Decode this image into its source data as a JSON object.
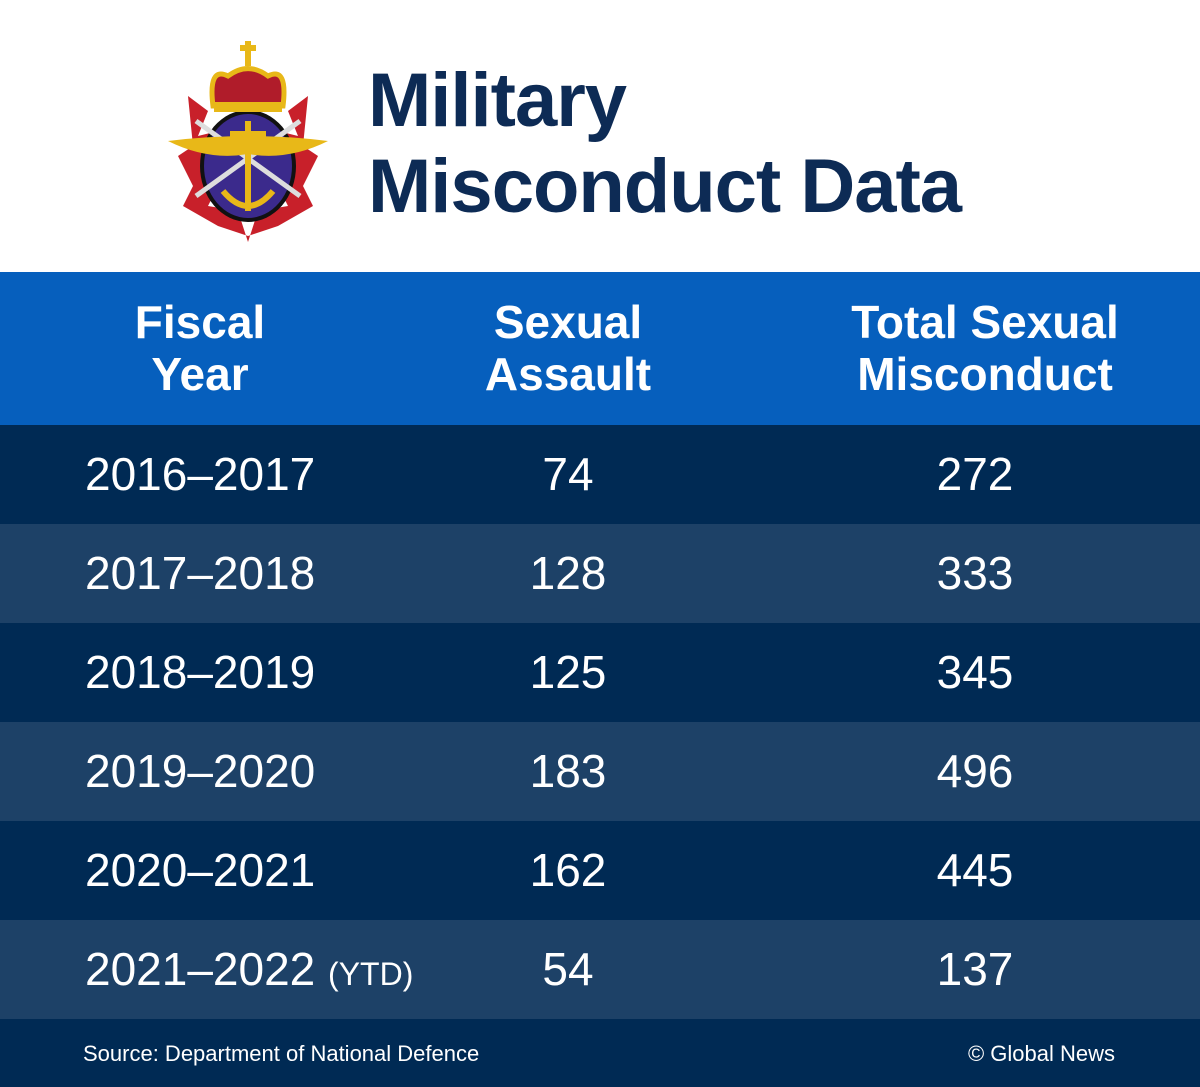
{
  "header": {
    "title_line1": "Military",
    "title_line2": "Misconduct Data"
  },
  "logo": {
    "name": "canadian-armed-forces-emblem"
  },
  "colors": {
    "title": "#0d2b55",
    "header_bar": "#065fbd",
    "row_dark": "#002a54",
    "row_light": "#1d4167"
  },
  "chart_data": {
    "type": "table",
    "columns": [
      {
        "line1": "Fiscal",
        "line2": "Year"
      },
      {
        "line1": "Sexual",
        "line2": "Assault"
      },
      {
        "line1": "Total Sexual",
        "line2": "Misconduct"
      }
    ],
    "rows": [
      {
        "year": "2016–2017",
        "note": "",
        "sexual_assault": "74",
        "total": "272"
      },
      {
        "year": "2017–2018",
        "note": "",
        "sexual_assault": "128",
        "total": "333"
      },
      {
        "year": "2018–2019",
        "note": "",
        "sexual_assault": "125",
        "total": "345"
      },
      {
        "year": "2019–2020",
        "note": "",
        "sexual_assault": "183",
        "total": "496"
      },
      {
        "year": "2020–2021",
        "note": "",
        "sexual_assault": "162",
        "total": "445"
      },
      {
        "year": "2021–2022",
        "note": "(YTD)",
        "sexual_assault": "54",
        "total": "137"
      }
    ]
  },
  "footer": {
    "source": "Source: Department of National Defence",
    "credit": "© Global News"
  }
}
